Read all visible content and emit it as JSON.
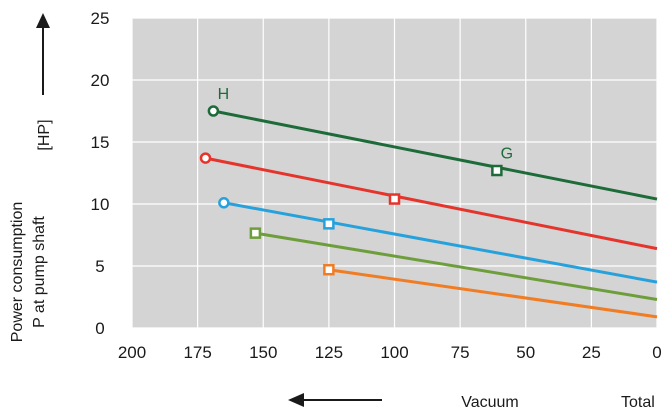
{
  "chart_data": {
    "type": "line",
    "title": "",
    "ylabel_lines": [
      "Power consumption",
      "P at pump shaft"
    ],
    "yunit": "[HP]",
    "xlabel": "Vacuum",
    "xlabel_right": "Total",
    "x_reversed": true,
    "xlim": [
      200,
      0
    ],
    "ylim": [
      0,
      25
    ],
    "xticks": [
      200,
      175,
      150,
      125,
      100,
      75,
      50,
      25,
      0
    ],
    "yticks": [
      0,
      5,
      10,
      15,
      20,
      25
    ],
    "grid": true,
    "colors": {
      "background": "#d4d4d4",
      "grid": "#ffffff",
      "axis": "#1a1a1a"
    },
    "series": [
      {
        "color": "#1e6b3a",
        "marker_shape": "circle",
        "x": [
          169,
          0
        ],
        "y": [
          17.5,
          10.4
        ]
      },
      {
        "color": "#e5342c",
        "marker_shape": "circle",
        "x": [
          172,
          0
        ],
        "y": [
          13.7,
          6.4
        ]
      },
      {
        "color": "#27a1dc",
        "marker_shape": "circle",
        "x": [
          165,
          0
        ],
        "y": [
          10.1,
          3.7
        ]
      },
      {
        "color": "#6e9e3c",
        "marker_shape": "square",
        "x": [
          153,
          0
        ],
        "y": [
          7.65,
          2.3
        ]
      },
      {
        "color": "#f07c24",
        "marker_shape": "square",
        "x": [
          125,
          0
        ],
        "y": [
          4.7,
          0.9
        ]
      }
    ],
    "extra_markers": [
      {
        "series": 0,
        "x": 61,
        "y": 12.7,
        "shape": "square"
      },
      {
        "series": 1,
        "x": 100,
        "y": 10.4,
        "shape": "square"
      },
      {
        "series": 2,
        "x": 125,
        "y": 8.4,
        "shape": "square"
      }
    ],
    "annotations": [
      {
        "text": "H",
        "x": 169,
        "y": 17.5,
        "color": "#1e6b3a"
      },
      {
        "text": "G",
        "x": 61,
        "y": 12.7,
        "color": "#1e6b3a"
      }
    ]
  }
}
